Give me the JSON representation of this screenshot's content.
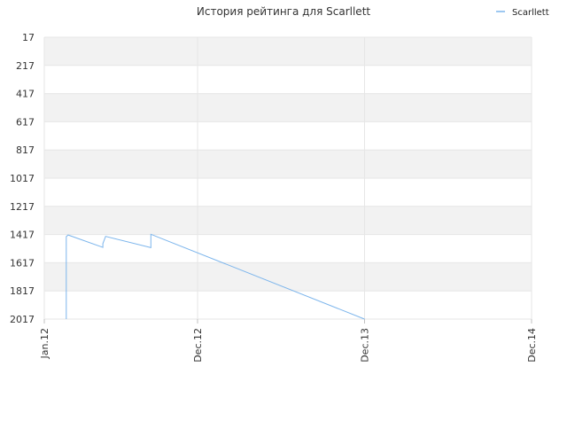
{
  "chart_data": {
    "type": "line",
    "title": "История рейтинга для Scarllett",
    "legend": {
      "position": "top-right",
      "entries": [
        "Scarllett"
      ]
    },
    "colors": {
      "series": "#7cb5ec",
      "band": "#f2f2f2",
      "grid": "#e6e6e6",
      "text": "#333333"
    },
    "grid": true,
    "y_inverted": true,
    "ylim": [
      17,
      2017
    ],
    "y_ticks": [
      "17",
      "217",
      "417",
      "617",
      "817",
      "1017",
      "1217",
      "1417",
      "1617",
      "1817",
      "2017"
    ],
    "x_ticks": [
      "Jan.12",
      "Dec.12",
      "Dec.13",
      "Dec.14"
    ],
    "xlabel": "",
    "ylabel": "",
    "series": [
      {
        "name": "Scarllett",
        "points": [
          [
            "2012-02-18",
            2017
          ],
          [
            "2012-02-18",
            1432
          ],
          [
            "2012-02-22",
            1420
          ],
          [
            "2012-05-08",
            1508
          ],
          [
            "2012-05-08",
            1482
          ],
          [
            "2012-05-14",
            1430
          ],
          [
            "2012-08-21",
            1510
          ],
          [
            "2012-08-21",
            1415
          ],
          [
            "2013-12-01",
            2017
          ]
        ]
      }
    ]
  }
}
